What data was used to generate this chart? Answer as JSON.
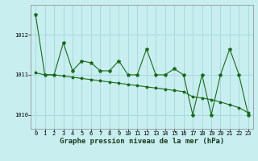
{
  "title": "Graphe pression niveau de la mer (hPa)",
  "background_color": "#c8eef0",
  "grid_color": "#a0d8dc",
  "line_color": "#1a6b1a",
  "x_values": [
    0,
    1,
    2,
    3,
    4,
    5,
    6,
    7,
    8,
    9,
    10,
    11,
    12,
    13,
    14,
    15,
    16,
    17,
    18,
    19,
    20,
    21,
    22,
    23
  ],
  "y_jagged": [
    1012.5,
    1011.0,
    1011.0,
    1011.8,
    1011.1,
    1011.35,
    1011.3,
    1011.1,
    1011.1,
    1011.35,
    1011.0,
    1011.0,
    1011.65,
    1011.0,
    1011.0,
    1011.15,
    1011.0,
    1010.0,
    1011.0,
    1010.0,
    1011.0,
    1011.65,
    1011.0,
    1010.0
  ],
  "y_smooth": [
    1011.05,
    1011.0,
    1011.0,
    1010.97,
    1010.94,
    1010.91,
    1010.88,
    1010.85,
    1010.82,
    1010.79,
    1010.76,
    1010.73,
    1010.7,
    1010.67,
    1010.64,
    1010.61,
    1010.58,
    1010.45,
    1010.42,
    1010.38,
    1010.32,
    1010.25,
    1010.18,
    1010.05
  ],
  "ylim": [
    1009.65,
    1012.75
  ],
  "yticks": [
    1010,
    1011,
    1012
  ],
  "xticks": [
    0,
    1,
    2,
    3,
    4,
    5,
    6,
    7,
    8,
    9,
    10,
    11,
    12,
    13,
    14,
    15,
    16,
    17,
    18,
    19,
    20,
    21,
    22,
    23
  ],
  "title_fontsize": 6.5,
  "tick_fontsize": 5.0,
  "figsize": [
    3.2,
    2.0
  ],
  "dpi": 100
}
